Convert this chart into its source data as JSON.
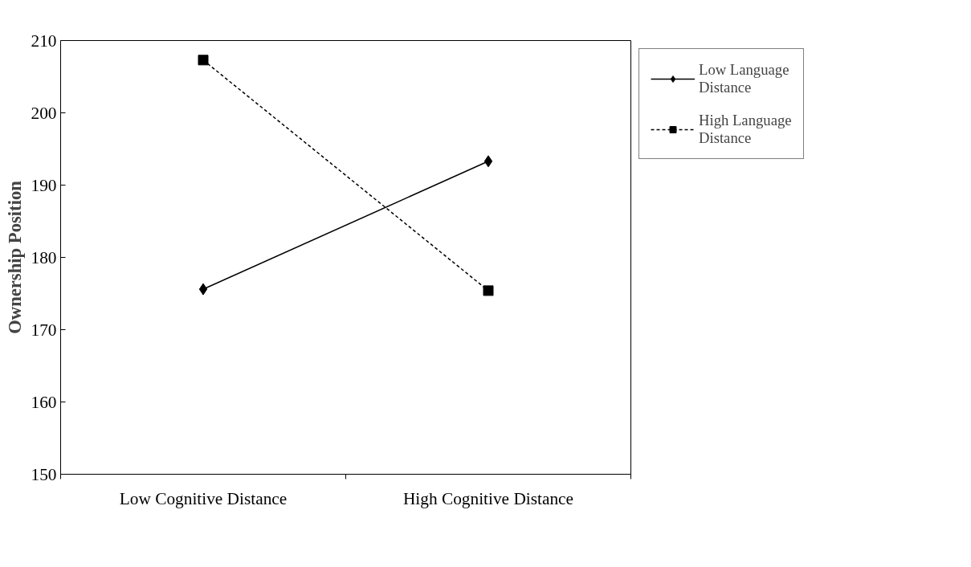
{
  "chart_data": {
    "type": "line",
    "ylabel": "Ownership Position",
    "categories": [
      "Low Cognitive Distance",
      "High Cognitive Distance"
    ],
    "ylim": [
      150,
      210
    ],
    "yticks": [
      150,
      160,
      170,
      180,
      190,
      200,
      210
    ],
    "grid": false,
    "legend": "right",
    "series": [
      {
        "name": "Low Language Distance",
        "color": "#000000",
        "values": [
          175.6,
          193.3
        ],
        "marker": "diamond",
        "line_style": "solid"
      },
      {
        "name": "High Language Distance",
        "color": "#000000",
        "values": [
          207.3,
          175.4
        ],
        "marker": "square",
        "line_style": "dashed"
      }
    ]
  }
}
